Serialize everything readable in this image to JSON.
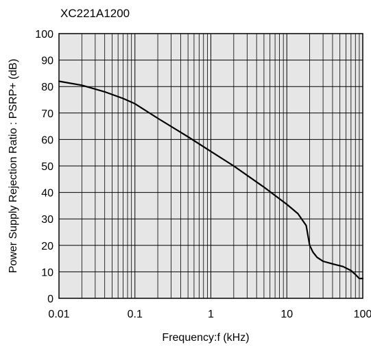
{
  "chart_data": {
    "type": "line",
    "title": "XC221A1200",
    "xlabel": "Frequency:f (kHz)",
    "ylabel": "Power Supply Rejection Ratio : PSRP+ (dB)",
    "xscale": "log",
    "xlim": [
      0.01,
      100
    ],
    "ylim": [
      0,
      100
    ],
    "xticks": [
      "0.01",
      "0.1",
      "1",
      "10",
      "100"
    ],
    "yticks": [
      "0",
      "10",
      "20",
      "30",
      "40",
      "50",
      "60",
      "70",
      "80",
      "90",
      "100"
    ],
    "grid": true,
    "background": "#e6e6e6",
    "line_color": "#000000",
    "series": [
      {
        "x": [
          0.01,
          0.02,
          0.04,
          0.07,
          0.1,
          0.2,
          0.5,
          1,
          2,
          5,
          10,
          14,
          18,
          20,
          22,
          25,
          30,
          40,
          55,
          70,
          80,
          90,
          100
        ],
        "y": [
          82,
          80.5,
          78,
          75.5,
          73.5,
          68,
          61,
          55.5,
          50,
          42,
          35.5,
          32,
          27.5,
          20,
          17.5,
          15.5,
          14,
          13,
          12,
          10.5,
          9,
          7.5,
          7.5
        ]
      }
    ]
  }
}
